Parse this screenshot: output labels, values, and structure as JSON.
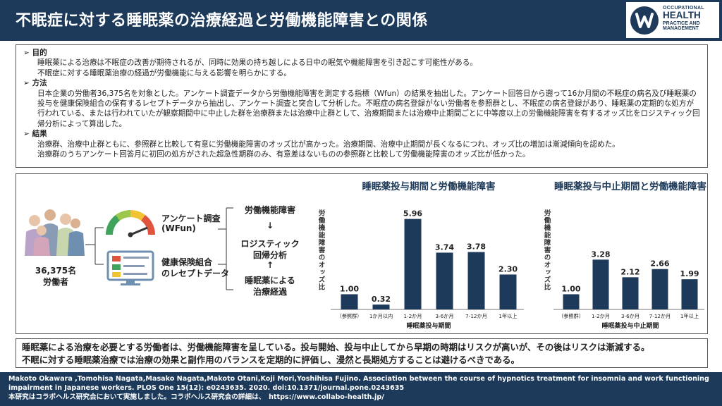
{
  "header": {
    "title": "不眠症に対する睡眠薬の治療経過と労働機能障害との関係",
    "logo": {
      "line1": "OCCUPATIONAL",
      "line2": "HEALTH",
      "line3": "PRACTICE AND",
      "line4": "MANAGEMENT"
    }
  },
  "summary": {
    "purpose": {
      "heading": "➢ 目的",
      "lines": [
        "睡眠薬による治療は不眠症の改善が期待されるが、同時に効果の持ち越しによる日中の眠気や機能障害を引き起こす可能性がある。",
        "不眠症に対する睡眠薬治療の経過が労働機能に与える影響を明らかにする。"
      ]
    },
    "method": {
      "heading": "➢ 方法",
      "lines": [
        "日本企業の労働者36,375名を対象とした。アンケート調査データから労働機能障害を測定する指標（Wfun）の結果を抽出した。アンケート回答日から遡って16か月間の不眠症の病名及び睡眠薬の投与を健康保険組合の保有するレセプトデータから抽出し、アンケート調査と突合して分析した。不眠症の病名登録がない労働者を参照群とし、不眠症の病名登録があり、睡眠薬の定期的な処方が行われている、または行われていたが観察期間中に中止した群を治療群または治療中止群として、治療期間または治療中止期間ごとに中等度以上の労働機能障害を有するオッズ比をロジスティック回帰分析によって算出した。"
      ]
    },
    "results": {
      "heading": "➢ 結果",
      "lines": [
        "治療群、治療中止群ともに、参照群と比較して有意に労働機能障害のオッズ比が高かった。治療期間、治療中止期間が長くなるにつれ、オッズ比の増加は漸減傾向を認めた。",
        "治療群のうちアンケート回答月に初回の処方がされた超急性期群のみ、有意差はないものの参照群と比較して労働機能障害のオッズ比が低かった。"
      ]
    }
  },
  "flow": {
    "workers_count": "36,375名",
    "workers_label": "労働者",
    "survey_label": "アンケート調査",
    "survey_sub": "(WFun)",
    "receipt_line1": "健康保険組合",
    "receipt_line2": "のレセプトデータ",
    "impairment_label": "労働機能障害",
    "analysis_line1": "ロジスティック",
    "analysis_line2": "回帰分析",
    "course_line1": "睡眠薬による",
    "course_line2": "治療経過",
    "arrow_down": "↓",
    "arrow_up": "↑"
  },
  "chart_data": [
    {
      "type": "bar",
      "title": "睡眠薬投与期間と労働機能障害",
      "ylabel": "労働機能障害のオッズ比",
      "xlabel": "睡眠薬投与期間",
      "categories": [
        "（参照群）",
        "1か月以内",
        "1-2か月",
        "3-6か月",
        "7-12か月",
        "1年以上"
      ],
      "values": [
        1.0,
        0.32,
        5.96,
        3.74,
        3.78,
        2.3
      ],
      "value_labels": [
        "1.00",
        "0.32",
        "5.96",
        "3.74",
        "3.78",
        "2.30"
      ],
      "ylim": [
        0,
        6.5
      ],
      "color": "#1d3a5a"
    },
    {
      "type": "bar",
      "title": "睡眠薬投与中止期間と労働機能障害",
      "ylabel": "労働機能障害のオッズ比",
      "xlabel": "睡眠薬投与中止期間",
      "categories": [
        "（参照群）",
        "1-2か月",
        "3-6か月",
        "7-12か月",
        "1年以上"
      ],
      "values": [
        1.0,
        3.28,
        2.12,
        2.66,
        1.99
      ],
      "value_labels": [
        "1.00",
        "3.28",
        "2.12",
        "2.66",
        "1.99"
      ],
      "ylim": [
        0,
        6.5
      ],
      "color": "#1d3a5a"
    }
  ],
  "conclusion": {
    "line1": "睡眠薬による治療を必要とする労働者は、労働機能障害を呈している。投与開始、投与中止してから早期の時期はリスクが高いが、その後はリスクは漸減する。",
    "line2": "不眠に対する睡眠薬治療では治療の効果と副作用のバランスを定期的に評価し、漫然と長期処方することは避けるべきである。"
  },
  "footer": {
    "citation": "Makoto Okawara ,Tomohisa Nagata,Masako Nagata,Makoto Otani,Koji Mori,Yoshihisa Fujino. Association between the course of hypnotics treatment for insomnia and work functioning impairment in Japanese workers. PLOS One 15(12): e0243635. 2020. doi:10.1371/journal.pone.0243635",
    "note": "本研究はコラボヘルス研究会において実施しました。コラボヘルス研究会の詳細は、　https://www.collabo-health.jp/"
  }
}
